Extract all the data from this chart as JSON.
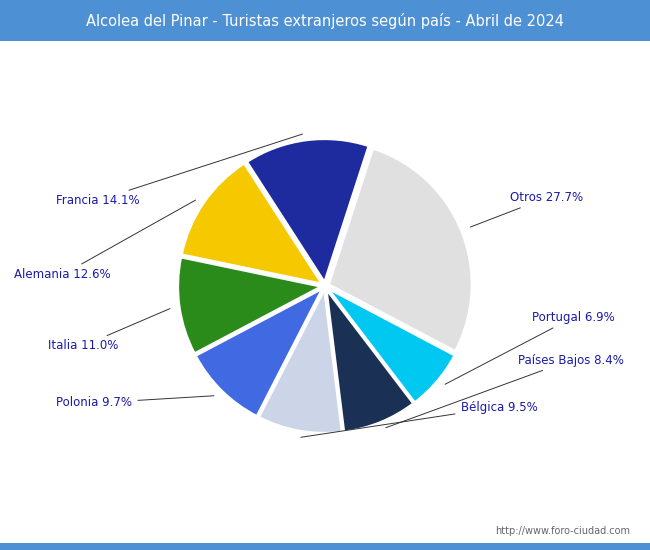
{
  "title": "Alcolea del Pinar - Turistas extranjeros según país - Abril de 2024",
  "title_bg_color": "#4d90d4",
  "title_text_color": "#ffffff",
  "watermark": "http://www.foro-ciudad.com",
  "labels": [
    "Otros",
    "Portugal",
    "Países Bajos",
    "Bélgica",
    "Polonia",
    "Italia",
    "Alemania",
    "Francia"
  ],
  "values": [
    27.7,
    6.9,
    8.4,
    9.5,
    9.7,
    11.0,
    12.6,
    14.1
  ],
  "colors": [
    "#e0e0e0",
    "#00c8f0",
    "#1a3055",
    "#ccd4e8",
    "#4169e1",
    "#2a8a1a",
    "#f5c800",
    "#1e2b9e"
  ],
  "label_color": "#1a1aaa",
  "startangle": 72
}
